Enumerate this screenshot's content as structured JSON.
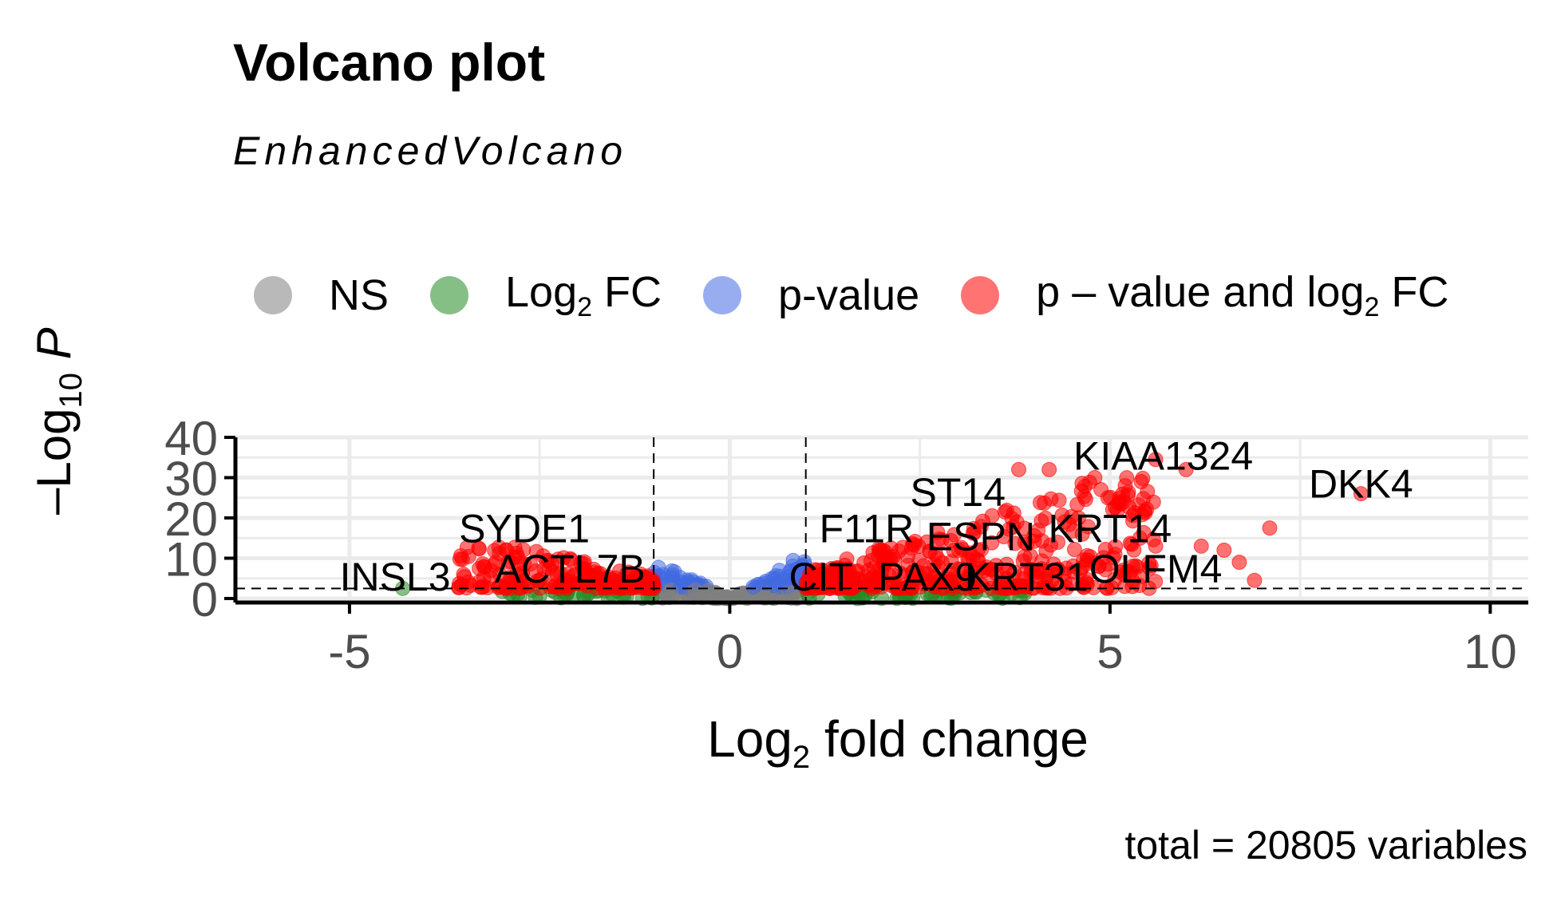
{
  "header": {
    "title": "Volcano plot",
    "subtitle": "EnhancedVolcano"
  },
  "caption": "total = 20805 variables",
  "legend": [
    {
      "key": "ns",
      "label": "NS",
      "color": "#808080"
    },
    {
      "key": "log2fc",
      "label": "Log₂ FC",
      "label_main": "Log",
      "label_sub": "2",
      "label_rest": " FC",
      "color": "#228b22"
    },
    {
      "key": "pvalue",
      "label": "p-value",
      "label_main": "p-value",
      "label_sub": "",
      "label_rest": "",
      "color": "#4169e1"
    },
    {
      "key": "both",
      "label": "p – value and log₂ FC",
      "label_main": "p – value and log",
      "label_sub": "2",
      "label_rest": " FC",
      "color": "#ff0000"
    }
  ],
  "chart_data": {
    "type": "scatter",
    "title": "Volcano plot",
    "subtitle": "EnhancedVolcano",
    "xlabel": "Log₂ fold change",
    "ylabel": "–Log₁₀ P",
    "xlim": [
      -6.5,
      10.5
    ],
    "ylim": [
      -1,
      40
    ],
    "x_ticks": [
      -5,
      0,
      5,
      10
    ],
    "y_ticks": [
      0,
      10,
      20,
      30,
      40
    ],
    "grid": true,
    "fc_cutoff": 1,
    "p_cutoff_line_y": 2.5,
    "colors": {
      "NS": "#808080",
      "Log2FC": "#228b22",
      "pvalue": "#4169e1",
      "both": "#ff0000"
    },
    "labels": [
      {
        "text": "KIAA1324",
        "x": 5.7,
        "y": 32
      },
      {
        "text": "DKK4",
        "x": 8.3,
        "y": 25
      },
      {
        "text": "ST14",
        "x": 3.0,
        "y": 23
      },
      {
        "text": "SYDE1",
        "x": -2.7,
        "y": 14
      },
      {
        "text": "F11R",
        "x": 1.8,
        "y": 14
      },
      {
        "text": "ESPN",
        "x": 3.3,
        "y": 12
      },
      {
        "text": "KRT14",
        "x": 5.0,
        "y": 14
      },
      {
        "text": "OLFM4",
        "x": 5.6,
        "y": 4
      },
      {
        "text": "ACTL7B",
        "x": -2.1,
        "y": 4
      },
      {
        "text": "INSL3",
        "x": -4.4,
        "y": 2
      },
      {
        "text": "CIT",
        "x": 1.2,
        "y": 2
      },
      {
        "text": "PAX9",
        "x": 2.6,
        "y": 2
      },
      {
        "text": "KRT31",
        "x": 3.9,
        "y": 2
      }
    ],
    "highlight_points": [
      {
        "x": 8.3,
        "y": 26
      },
      {
        "x": 7.1,
        "y": 17.5
      },
      {
        "x": 5.6,
        "y": 34.5
      },
      {
        "x": 6.0,
        "y": 32
      },
      {
        "x": 4.2,
        "y": 32
      },
      {
        "x": 3.8,
        "y": 32
      },
      {
        "x": 4.8,
        "y": 30
      },
      {
        "x": 5.2,
        "y": 28
      },
      {
        "x": 6.9,
        "y": 4.5
      },
      {
        "x": 6.5,
        "y": 12
      },
      {
        "x": 6.7,
        "y": 9
      },
      {
        "x": -3.3,
        "y": 12.5
      },
      {
        "x": -4.3,
        "y": 2.5
      },
      {
        "x": -3.5,
        "y": 6
      },
      {
        "x": 5.6,
        "y": 13
      },
      {
        "x": 6.2,
        "y": 13
      },
      {
        "x": 4.7,
        "y": 3.5
      },
      {
        "x": 5.3,
        "y": 8
      }
    ]
  }
}
